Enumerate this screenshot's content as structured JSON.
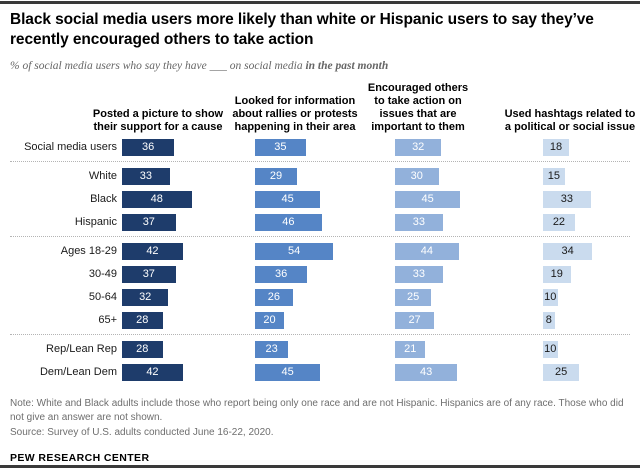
{
  "title": {
    "line1": "Black social media users more likely than white or Hispanic users to say they’ve",
    "line2": "recently encouraged others to take action"
  },
  "subtitle": {
    "prefix": "% of social media users who say they have ___ on social media ",
    "bold": "in the past month"
  },
  "chart_data": {
    "type": "bar",
    "orientation": "horizontal",
    "unit": "%",
    "value_labels": "inside-center",
    "grid": false,
    "xlim": [
      0,
      60
    ],
    "categories": [
      "Social media users",
      "White",
      "Black",
      "Hispanic",
      "Ages 18-29",
      "30-49",
      "50-64",
      "65+",
      "Rep/Lean Rep",
      "Dem/Lean Dem"
    ],
    "series": [
      {
        "name": "Posted a picture to show\ntheir support for a cause",
        "color": "#1E3C6B",
        "values": [
          36,
          33,
          48,
          37,
          42,
          37,
          32,
          28,
          28,
          42
        ]
      },
      {
        "name": "Looked for information\nabout rallies or protests\nhappening in their area",
        "color": "#5585C6",
        "values": [
          35,
          29,
          45,
          46,
          54,
          36,
          26,
          20,
          23,
          45
        ]
      },
      {
        "name": "Encouraged others\nto take action on\nissues that are\nimportant to them",
        "color": "#92B1DB",
        "values": [
          32,
          30,
          45,
          33,
          44,
          33,
          25,
          27,
          21,
          43
        ]
      },
      {
        "name": "Used hashtags related to\na political or social issue",
        "color": "#CADBEE",
        "values": [
          18,
          15,
          33,
          22,
          34,
          19,
          10,
          8,
          10,
          25
        ]
      }
    ],
    "group_separators_after": [
      "Social media users",
      "Hispanic",
      "65+"
    ]
  },
  "style": {
    "bar_text_colors": [
      "#ffffff",
      "#ffffff",
      "#ffffff",
      "#1a1a1a"
    ]
  },
  "notes": {
    "note_text": "Note: White and Black adults include those who report being only one race and are not Hispanic. Hispanics are of any race. Those who did not give an answer are not shown.",
    "source_text": "Source: Survey of U.S. adults conducted June 16-22, 2020."
  },
  "branding": "PEW RESEARCH CENTER"
}
